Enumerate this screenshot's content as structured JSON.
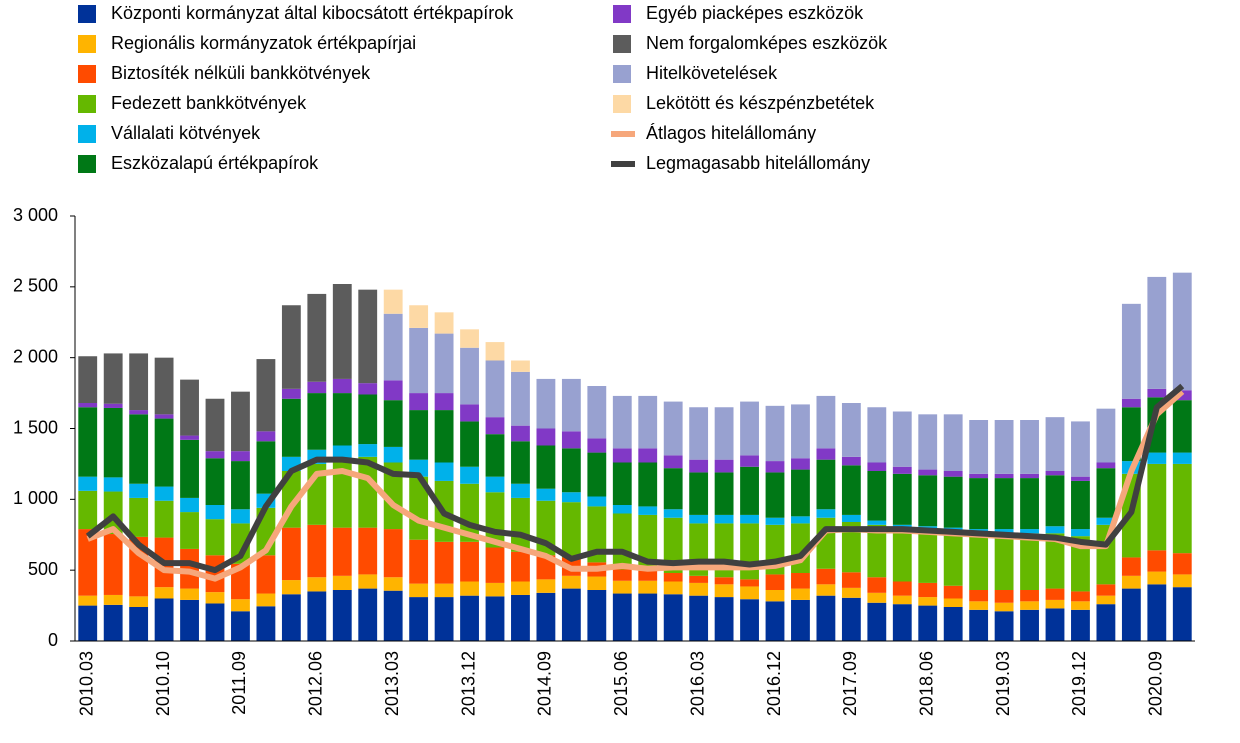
{
  "chart_data": {
    "type": "bar",
    "stacked": true,
    "categories": [
      "2010.03",
      null,
      null,
      "2010.10",
      null,
      null,
      "2011.09",
      null,
      null,
      "2012.06",
      null,
      null,
      "2013.03",
      null,
      null,
      "2013.12",
      null,
      null,
      "2014.09",
      null,
      null,
      "2015.06",
      null,
      null,
      "2016.03",
      null,
      null,
      "2016.12",
      null,
      null,
      "2017.09",
      null,
      null,
      "2018.06",
      null,
      null,
      "2019.03",
      null,
      null,
      "2019.12",
      null,
      null,
      "2020.09",
      null
    ],
    "ylim": [
      0,
      3000
    ],
    "yticks": [
      0,
      500,
      {
        "value": 1000,
        "label": "1 000"
      },
      {
        "value": 1500,
        "label": "1 500"
      },
      {
        "value": 2000,
        "label": "2 000"
      },
      {
        "value": 2500,
        "label": "2 500"
      },
      {
        "value": 3000,
        "label": "3 000"
      }
    ],
    "grid": false,
    "series": [
      {
        "name": "Központi kormányzat által kibocsátott értékpapírok",
        "color": "#003299",
        "values": [
          250,
          255,
          240,
          300,
          290,
          265,
          210,
          245,
          330,
          350,
          360,
          370,
          355,
          310,
          310,
          320,
          315,
          325,
          340,
          370,
          360,
          335,
          335,
          330,
          320,
          310,
          295,
          280,
          290,
          320,
          305,
          270,
          260,
          250,
          240,
          220,
          210,
          220,
          230,
          220,
          260,
          370,
          400,
          380
        ]
      },
      {
        "name": "Regionális kormányzatok értékpapírjai",
        "color": "#ffb400",
        "values": [
          70,
          70,
          75,
          80,
          80,
          80,
          85,
          90,
          100,
          100,
          100,
          100,
          95,
          95,
          95,
          100,
          95,
          95,
          95,
          90,
          95,
          90,
          90,
          90,
          90,
          90,
          90,
          80,
          80,
          80,
          70,
          70,
          60,
          60,
          60,
          60,
          60,
          60,
          60,
          60,
          60,
          90,
          90,
          90
        ]
      },
      {
        "name": "Biztosíték nélküli bankkötvények",
        "color": "#ff4b00",
        "values": [
          470,
          430,
          420,
          350,
          280,
          260,
          250,
          270,
          370,
          370,
          340,
          330,
          340,
          310,
          295,
          280,
          250,
          210,
          170,
          130,
          100,
          80,
          70,
          60,
          50,
          50,
          50,
          110,
          110,
          110,
          110,
          110,
          100,
          100,
          90,
          80,
          90,
          80,
          80,
          70,
          80,
          130,
          150,
          150
        ]
      },
      {
        "name": "Fedezett bankkötvények",
        "color": "#65b800",
        "values": [
          270,
          300,
          275,
          260,
          260,
          255,
          285,
          335,
          400,
          430,
          480,
          500,
          470,
          445,
          430,
          410,
          390,
          380,
          385,
          390,
          395,
          395,
          395,
          390,
          370,
          380,
          395,
          350,
          350,
          360,
          355,
          370,
          370,
          370,
          380,
          400,
          400,
          400,
          390,
          390,
          420,
          590,
          610,
          630
        ]
      },
      {
        "name": "Vállalati kötvények",
        "color": "#00b1ea",
        "values": [
          100,
          100,
          100,
          100,
          100,
          100,
          100,
          100,
          100,
          100,
          100,
          90,
          110,
          120,
          130,
          120,
          110,
          100,
          85,
          70,
          70,
          60,
          60,
          60,
          60,
          60,
          60,
          50,
          50,
          60,
          50,
          30,
          30,
          30,
          30,
          30,
          30,
          30,
          50,
          50,
          50,
          90,
          80,
          80
        ]
      },
      {
        "name": "Eszközalapú értékpapírok",
        "color": "#007816",
        "values": [
          490,
          490,
          490,
          480,
          410,
          330,
          340,
          370,
          410,
          400,
          370,
          350,
          330,
          350,
          370,
          320,
          300,
          300,
          305,
          310,
          310,
          300,
          310,
          290,
          300,
          300,
          340,
          320,
          330,
          350,
          350,
          350,
          360,
          360,
          360,
          360,
          360,
          360,
          360,
          340,
          350,
          380,
          390,
          370
        ]
      },
      {
        "name": "Egyéb piacképes eszközök",
        "color": "#8139c6",
        "values": [
          30,
          30,
          30,
          30,
          30,
          50,
          70,
          70,
          70,
          80,
          100,
          80,
          140,
          120,
          120,
          120,
          120,
          110,
          120,
          120,
          100,
          100,
          100,
          90,
          90,
          90,
          80,
          80,
          80,
          80,
          60,
          60,
          50,
          40,
          40,
          30,
          30,
          30,
          30,
          30,
          40,
          60,
          60,
          70
        ]
      },
      {
        "name": "Nem forgalomképes eszközök",
        "color": "#5c5c5c",
        "values": [
          330,
          355,
          400,
          400,
          395,
          370,
          420,
          510,
          590,
          620,
          670,
          660,
          0,
          0,
          0,
          0,
          0,
          0,
          0,
          0,
          0,
          0,
          0,
          0,
          0,
          0,
          0,
          0,
          0,
          0,
          0,
          0,
          0,
          0,
          0,
          0,
          0,
          0,
          0,
          0,
          0,
          0,
          0,
          0
        ]
      },
      {
        "name": "Hitelkövetelések",
        "color": "#98a1d0",
        "values": [
          0,
          0,
          0,
          0,
          0,
          0,
          0,
          0,
          0,
          0,
          0,
          0,
          470,
          460,
          420,
          400,
          400,
          380,
          350,
          370,
          370,
          370,
          370,
          380,
          370,
          370,
          380,
          390,
          380,
          370,
          380,
          390,
          390,
          390,
          400,
          380,
          380,
          380,
          380,
          390,
          380,
          670,
          790,
          830
        ]
      },
      {
        "name": "Lekötött és készpénzbetétek",
        "color": "#fdd9a5",
        "values": [
          0,
          0,
          0,
          0,
          0,
          0,
          0,
          0,
          0,
          0,
          0,
          0,
          170,
          160,
          150,
          130,
          130,
          80,
          0,
          0,
          0,
          0,
          0,
          0,
          0,
          0,
          0,
          0,
          0,
          0,
          0,
          0,
          0,
          0,
          0,
          0,
          0,
          0,
          0,
          0,
          0,
          0,
          0,
          0
        ]
      },
      {
        "name": "Átlagos hitelállomány",
        "color": "#f6a77b",
        "type": "line",
        "values": [
          720,
          790,
          620,
          500,
          490,
          440,
          520,
          640,
          950,
          1180,
          1200,
          1150,
          960,
          850,
          800,
          750,
          700,
          650,
          600,
          510,
          510,
          530,
          510,
          520,
          520,
          520,
          520,
          530,
          570,
          780,
          790,
          780,
          780,
          770,
          760,
          750,
          740,
          730,
          720,
          670,
          670,
          1200,
          1600,
          1760
        ]
      },
      {
        "name": "Legmagasabb hitelállomány",
        "color": "#404040",
        "type": "line",
        "values": [
          740,
          880,
          680,
          550,
          550,
          500,
          600,
          950,
          1200,
          1280,
          1280,
          1260,
          1180,
          1170,
          900,
          820,
          770,
          750,
          690,
          580,
          630,
          630,
          560,
          550,
          560,
          560,
          540,
          560,
          600,
          790,
          790,
          790,
          790,
          780,
          770,
          760,
          750,
          740,
          730,
          700,
          680,
          910,
          1650,
          1800
        ]
      }
    ]
  }
}
